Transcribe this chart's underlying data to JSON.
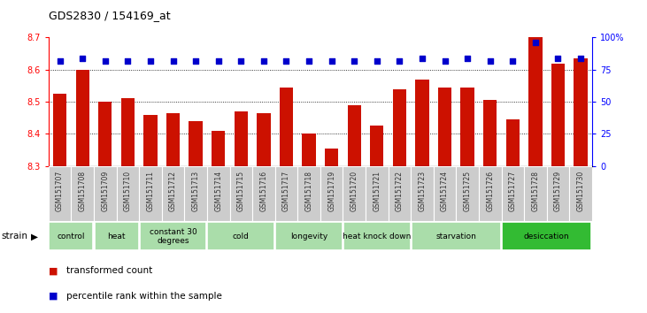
{
  "title": "GDS2830 / 154169_at",
  "samples": [
    "GSM151707",
    "GSM151708",
    "GSM151709",
    "GSM151710",
    "GSM151711",
    "GSM151712",
    "GSM151713",
    "GSM151714",
    "GSM151715",
    "GSM151716",
    "GSM151717",
    "GSM151718",
    "GSM151719",
    "GSM151720",
    "GSM151721",
    "GSM151722",
    "GSM151723",
    "GSM151724",
    "GSM151725",
    "GSM151726",
    "GSM151727",
    "GSM151728",
    "GSM151729",
    "GSM151730"
  ],
  "bar_values": [
    8.525,
    8.6,
    8.5,
    8.51,
    8.46,
    8.465,
    8.44,
    8.41,
    8.47,
    8.465,
    8.545,
    8.4,
    8.355,
    8.49,
    8.425,
    8.54,
    8.57,
    8.545,
    8.545,
    8.505,
    8.445,
    8.7,
    8.62,
    8.635
  ],
  "percentile_values": [
    82,
    84,
    82,
    82,
    82,
    82,
    82,
    82,
    82,
    82,
    82,
    82,
    82,
    82,
    82,
    82,
    84,
    82,
    84,
    82,
    82,
    96,
    84,
    84
  ],
  "bar_color": "#cc1100",
  "dot_color": "#0000cc",
  "ylim_left": [
    8.3,
    8.7
  ],
  "ylim_right": [
    0,
    100
  ],
  "right_ticks": [
    0,
    25,
    50,
    75,
    100
  ],
  "right_ticklabels": [
    "0",
    "25",
    "50",
    "75",
    "100%"
  ],
  "left_ticks": [
    8.3,
    8.4,
    8.5,
    8.6,
    8.7
  ],
  "groups": [
    {
      "label": "control",
      "start": 0,
      "end": 2,
      "color": "#aaddaa"
    },
    {
      "label": "heat",
      "start": 2,
      "end": 4,
      "color": "#aaddaa"
    },
    {
      "label": "constant 30\ndegrees",
      "start": 4,
      "end": 7,
      "color": "#aaddaa"
    },
    {
      "label": "cold",
      "start": 7,
      "end": 10,
      "color": "#aaddaa"
    },
    {
      "label": "longevity",
      "start": 10,
      "end": 13,
      "color": "#aaddaa"
    },
    {
      "label": "heat knock down",
      "start": 13,
      "end": 16,
      "color": "#aaddaa"
    },
    {
      "label": "starvation",
      "start": 16,
      "end": 20,
      "color": "#aaddaa"
    },
    {
      "label": "desiccation",
      "start": 20,
      "end": 24,
      "color": "#33bb33"
    }
  ],
  "legend_bar_label": "transformed count",
  "legend_dot_label": "percentile rank within the sample",
  "strain_label": "strain"
}
